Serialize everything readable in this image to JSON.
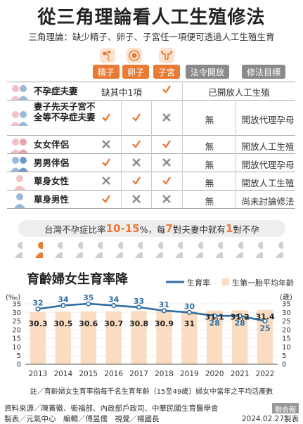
{
  "title": "從三角理論看人工生殖修法",
  "subtitle": "三角理論：缺少精子、卵子、子宮任一項便可透過人工生殖生育",
  "headers": {
    "sperm": "精子",
    "egg": "卵子",
    "uterus": "子宮",
    "law_open": "法令開放",
    "goal": "修法目標"
  },
  "rows": [
    {
      "label": "不孕症夫妻",
      "merged_left": "缺其中1項",
      "uterus_mark": "check",
      "merged_right": "已開放人工生殖"
    },
    {
      "label": "妻子先天子宮不全等不孕症夫妻",
      "sperm": "check",
      "egg": "check",
      "uterus": "cross",
      "law": "無",
      "goal": "開放代理孕母"
    },
    {
      "label": "女女伴侶",
      "sperm": "cross",
      "egg": "check",
      "uterus": "check",
      "law": "無",
      "goal": "開放人工生殖"
    },
    {
      "label": "男男伴侶",
      "sperm": "check",
      "egg": "cross",
      "uterus": "cross",
      "law": "無",
      "goal": "開放代理孕母"
    },
    {
      "label": "單身女性",
      "sperm": "cross",
      "egg": "check",
      "uterus": "check",
      "law": "無",
      "goal": "開放人工生殖"
    },
    {
      "label": "單身男性",
      "sperm": "check",
      "egg": "cross",
      "uterus": "cross",
      "law": "無",
      "goal": "尚未討論修法"
    }
  ],
  "stat": {
    "pre": "台灣不孕症比率",
    "pct": "10-15",
    "unit": "%，每",
    "n7": "7",
    "mid": "對夫妻中就有",
    "n1": "1",
    "post": "對不孕"
  },
  "chart_data": {
    "type": "bar+line",
    "title": "育齡婦女生育率降",
    "categories": [
      "2013",
      "2014",
      "2015",
      "2016",
      "2017",
      "2018",
      "2019",
      "2020",
      "2021",
      "2022"
    ],
    "series": [
      {
        "name": "生育率",
        "type": "line",
        "axis": "left",
        "values": [
          32,
          34,
          35,
          34,
          33,
          31,
          30,
          28,
          28,
          25
        ],
        "labels": [
          "32",
          "34",
          "35",
          "34",
          "33",
          "31",
          "30",
          "28",
          "28",
          "25"
        ]
      },
      {
        "name": "生第一胎平均年齡",
        "type": "bar",
        "axis": "right",
        "values": [
          30.3,
          30.5,
          30.6,
          30.7,
          30.8,
          30.9,
          31,
          31.1,
          31.2,
          31.4
        ],
        "labels": [
          "30.3",
          "30.5",
          "30.6",
          "30.7",
          "30.8",
          "30.9",
          "31",
          "31.1",
          "31.2",
          "31.4"
        ]
      }
    ],
    "ylabel_left": "(‰)",
    "ylabel_right": "(歲)",
    "yticks_left": [
      "35",
      "30",
      "25",
      "20",
      "15",
      "10",
      "5",
      "0"
    ],
    "yticks_right": [
      "35",
      "30",
      "25",
      "20",
      "15",
      "10",
      "5",
      "0"
    ],
    "ylim": [
      0,
      35
    ],
    "legend_position": "top-right",
    "line_color": "#2f6ea3",
    "bar_color": "#fbdcc0"
  },
  "note": "註／育齡婦女生育率指每千名生育年齡（15至49歲）婦女中當年之平均活產數",
  "source": "資料來源／陳菁徽、衛福部、內政部戶政司、中華民國生育醫學會",
  "production": "製表／元氣中心　編輯／傅昱儒　視覺／楊國長",
  "credit": "聯合報",
  "date": "2024.02.27製表",
  "colors": {
    "orange": "#e97a34",
    "gray": "#8a8a8a",
    "pink": "#f1c1c4",
    "blue": "#2f6ea3"
  }
}
